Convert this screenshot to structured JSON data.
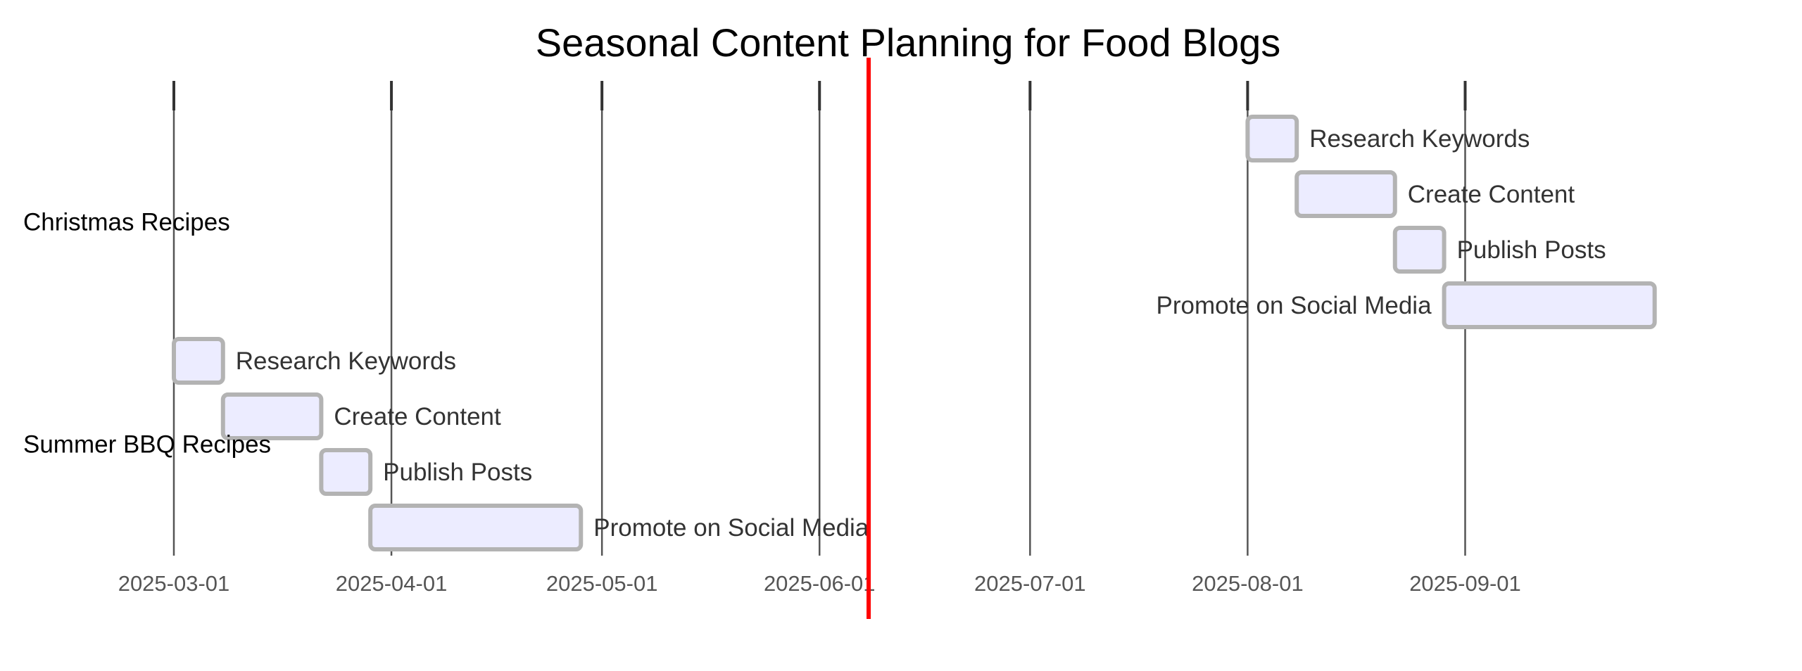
{
  "chart_data": {
    "type": "gantt",
    "title": "Seasonal Content Planning for Food Blogs",
    "x_ticks": [
      "2025-03-01",
      "2025-04-01",
      "2025-05-01",
      "2025-06-01",
      "2025-07-01",
      "2025-08-01",
      "2025-09-01"
    ],
    "x_range": [
      "2025-03-01",
      "2025-10-01"
    ],
    "today": "2025-06-08",
    "sections": [
      {
        "name": "Christmas Recipes",
        "tasks": [
          {
            "label": "Research Keywords",
            "start": "2025-08-01",
            "end": "2025-08-08"
          },
          {
            "label": "Create Content",
            "start": "2025-08-08",
            "end": "2025-08-22"
          },
          {
            "label": "Publish Posts",
            "start": "2025-08-22",
            "end": "2025-08-29"
          },
          {
            "label": "Promote on Social Media",
            "start": "2025-08-29",
            "end": "2025-09-28"
          }
        ]
      },
      {
        "name": "Summer BBQ Recipes",
        "tasks": [
          {
            "label": "Research Keywords",
            "start": "2025-03-01",
            "end": "2025-03-08"
          },
          {
            "label": "Create Content",
            "start": "2025-03-08",
            "end": "2025-03-22"
          },
          {
            "label": "Publish Posts",
            "start": "2025-03-22",
            "end": "2025-03-29"
          },
          {
            "label": "Promote on Social Media",
            "start": "2025-03-29",
            "end": "2025-04-28"
          }
        ]
      }
    ],
    "colors": {
      "bar_fill": "#ececff",
      "bar_stroke": "#b3b3b3",
      "today_line": "#ff0000",
      "grid": "#555555"
    }
  }
}
